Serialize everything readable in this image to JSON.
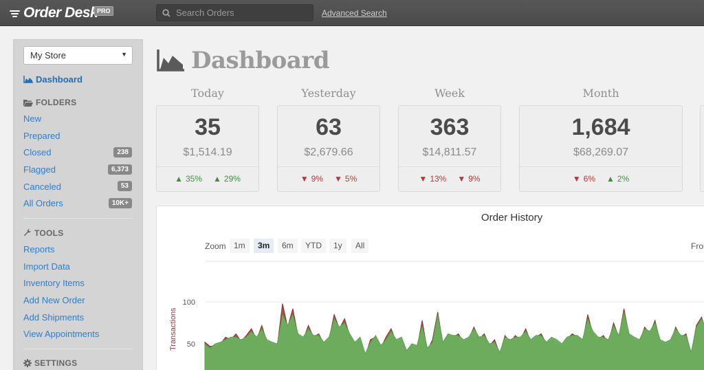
{
  "app": {
    "logo_text": "Order Desk",
    "badge": "PRO"
  },
  "search": {
    "placeholder": "Search Orders",
    "value": "",
    "advanced_label": "Advanced Search"
  },
  "sidebar": {
    "store_select": "My Store",
    "dashboard_label": "Dashboard",
    "folders_header": "FOLDERS",
    "folders": [
      {
        "label": "New",
        "count": ""
      },
      {
        "label": "Prepared",
        "count": ""
      },
      {
        "label": "Closed",
        "count": "238"
      },
      {
        "label": "Flagged",
        "count": "6,373"
      },
      {
        "label": "Canceled",
        "count": "53"
      },
      {
        "label": "All Orders",
        "count": "10K+"
      }
    ],
    "tools_header": "TOOLS",
    "tools": [
      {
        "label": "Reports"
      },
      {
        "label": "Import Data"
      },
      {
        "label": "Inventory Items"
      },
      {
        "label": "Add New Order"
      },
      {
        "label": "Add Shipments"
      },
      {
        "label": "View Appointments"
      }
    ],
    "settings_header": "SETTINGS"
  },
  "page": {
    "title": "Dashboard"
  },
  "stats": [
    {
      "label": "Today",
      "count": "35",
      "amount": "$1,514.19",
      "changes": [
        {
          "dir": "up",
          "value": "35%"
        },
        {
          "dir": "up",
          "value": "29%"
        }
      ]
    },
    {
      "label": "Yesterday",
      "count": "63",
      "amount": "$2,679.66",
      "changes": [
        {
          "dir": "down",
          "value": "9%"
        },
        {
          "dir": "down",
          "value": "5%"
        }
      ]
    },
    {
      "label": "Week",
      "count": "363",
      "amount": "$14,811.57",
      "changes": [
        {
          "dir": "down",
          "value": "13%"
        },
        {
          "dir": "down",
          "value": "9%"
        }
      ]
    },
    {
      "label": "Month",
      "count": "1,684",
      "amount": "$68,269.07",
      "changes": [
        {
          "dir": "down",
          "value": "6%"
        },
        {
          "dir": "up",
          "value": "2%"
        }
      ]
    }
  ],
  "chart": {
    "title": "Order History",
    "zoom_label": "Zoom",
    "zoom_options": [
      "1m",
      "3m",
      "6m",
      "YTD",
      "1y",
      "All"
    ],
    "zoom_selected": "3m",
    "from_label": "From"
  },
  "colors": {
    "up": "#3f8f3f",
    "down": "#b23a3a",
    "link": "#2a7fd0",
    "series_green": "#6aaf5e",
    "series_red": "#b94a4a"
  },
  "chart_data": {
    "type": "area",
    "title": "Order History",
    "xlabel": "",
    "ylabel": "Transactions",
    "yticks": [
      50,
      100
    ],
    "ylim": [
      0,
      120
    ],
    "grid": true,
    "series": [
      {
        "values": [
          52,
          47,
          48,
          50,
          58,
          55,
          62,
          53,
          60,
          68,
          55,
          72,
          52,
          50,
          48,
          98,
          70,
          92,
          60,
          55,
          72,
          58,
          62,
          50,
          55,
          85,
          68,
          80,
          60,
          50,
          55,
          35,
          55,
          58,
          45,
          58,
          68,
          52,
          55,
          40,
          48,
          45,
          78,
          42,
          55,
          88,
          50,
          60,
          58,
          62,
          52,
          56,
          70,
          56,
          62,
          48,
          55,
          38,
          60,
          52,
          60,
          55,
          68,
          52,
          58,
          62,
          50,
          55,
          52,
          48,
          56,
          62,
          58,
          52,
          85,
          62,
          55,
          60,
          52,
          75,
          58,
          92,
          60,
          55,
          52,
          70,
          62,
          78,
          52,
          50,
          52,
          70,
          58,
          62,
          38,
          72,
          82,
          62
        ]
      },
      {
        "values": [
          50,
          45,
          50,
          52,
          55,
          58,
          58,
          55,
          58,
          65,
          58,
          68,
          55,
          52,
          50,
          85,
          72,
          85,
          62,
          58,
          68,
          60,
          60,
          52,
          58,
          80,
          70,
          75,
          62,
          52,
          58,
          38,
          52,
          60,
          48,
          55,
          65,
          55,
          58,
          42,
          50,
          48,
          72,
          45,
          52,
          85,
          52,
          62,
          60,
          60,
          55,
          58,
          68,
          58,
          60,
          50,
          52,
          40,
          58,
          55,
          58,
          58,
          65,
          55,
          60,
          60,
          52,
          58,
          55,
          50,
          58,
          60,
          60,
          55,
          80,
          65,
          58,
          58,
          55,
          72,
          60,
          88,
          62,
          58,
          55,
          68,
          65,
          75,
          55,
          52,
          55,
          68,
          60,
          60,
          40,
          70,
          80,
          65
        ]
      }
    ]
  }
}
